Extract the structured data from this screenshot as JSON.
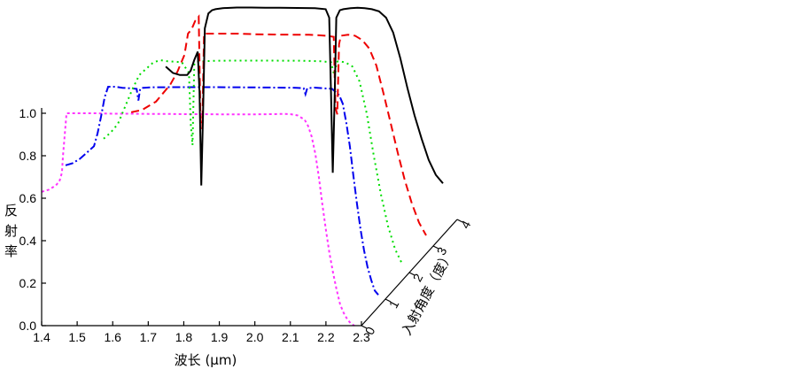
{
  "chart_data": {
    "type": "line",
    "subtype": "3d-waterfall",
    "xlabel": "波长 (μm)",
    "ylabel": "反射率",
    "zlabel": "入射角度（度）",
    "xlim": [
      1.4,
      2.3
    ],
    "ylim": [
      0.0,
      1.0
    ],
    "x_ticks": [
      "1.4",
      "1.5",
      "1.6",
      "1.7",
      "1.8",
      "1.9",
      "2.0",
      "2.1",
      "2.2",
      "2.3"
    ],
    "y_ticks": [
      "0.0",
      "0.2",
      "0.4",
      "0.6",
      "0.8",
      "1.0"
    ],
    "z_ticks": [
      "0",
      "1",
      "2",
      "3",
      "4"
    ],
    "series": [
      {
        "z": 0,
        "color": "#ff33ff",
        "dash": "3,3",
        "x": [
          1.4,
          1.42,
          1.44,
          1.45,
          1.457,
          1.46,
          1.465,
          1.47,
          1.55,
          1.6,
          1.65,
          1.7,
          1.75,
          1.8,
          1.85,
          1.9,
          1.95,
          2.0,
          2.05,
          2.08,
          2.1,
          2.12,
          2.14,
          2.15,
          2.16,
          2.17,
          2.18,
          2.19,
          2.2,
          2.21,
          2.22,
          2.23,
          2.24,
          2.25,
          2.26,
          2.27,
          2.28
        ],
        "y": [
          0.63,
          0.64,
          0.66,
          0.68,
          0.72,
          0.8,
          0.9,
          1.0,
          1.0,
          0.998,
          0.998,
          0.997,
          0.997,
          0.996,
          0.996,
          0.995,
          0.995,
          0.995,
          0.996,
          0.997,
          0.996,
          0.99,
          0.97,
          0.94,
          0.89,
          0.81,
          0.7,
          0.57,
          0.45,
          0.34,
          0.25,
          0.17,
          0.1,
          0.06,
          0.03,
          0.01,
          0.0
        ]
      },
      {
        "z": 1,
        "color": "#0000ee",
        "dash": "9,3,2,3",
        "x": [
          1.4,
          1.42,
          1.44,
          1.46,
          1.48,
          1.49,
          1.5,
          1.51,
          1.52,
          1.53,
          1.54,
          1.56,
          1.58,
          1.6,
          1.605,
          1.61,
          1.615,
          1.62,
          1.64,
          1.7,
          1.8,
          1.9,
          2.0,
          2.05,
          2.07,
          2.075,
          2.08,
          2.1,
          2.15,
          2.17,
          2.18,
          2.19,
          2.2,
          2.21,
          2.22,
          2.23,
          2.24,
          2.25,
          2.26,
          2.27,
          2.28
        ],
        "y": [
          0.63,
          0.64,
          0.66,
          0.69,
          0.72,
          0.78,
          0.86,
          0.95,
          1.0,
          1.0,
          1.0,
          0.995,
          0.993,
          0.99,
          0.935,
          0.99,
          0.995,
          0.995,
          0.997,
          0.998,
          0.998,
          0.997,
          0.996,
          0.995,
          0.993,
          0.965,
          0.993,
          0.996,
          0.99,
          0.96,
          0.92,
          0.83,
          0.72,
          0.58,
          0.45,
          0.33,
          0.23,
          0.15,
          0.09,
          0.04,
          0.02
        ]
      },
      {
        "z": 2,
        "color": "#00dd00",
        "dash": "2,4",
        "x": [
          1.44,
          1.46,
          1.48,
          1.5,
          1.52,
          1.54,
          1.56,
          1.58,
          1.6,
          1.62,
          1.64,
          1.66,
          1.68,
          1.685,
          1.69,
          1.695,
          1.7,
          1.75,
          1.8,
          1.9,
          2.0,
          2.05,
          2.08,
          2.09,
          2.095,
          2.1,
          2.12,
          2.14,
          2.16,
          2.18,
          2.2,
          2.22,
          2.24,
          2.26,
          2.28
        ],
        "y": [
          0.63,
          0.66,
          0.7,
          0.78,
          0.86,
          0.93,
          0.96,
          0.99,
          1.0,
          0.995,
          0.993,
          0.99,
          0.94,
          0.7,
          0.6,
          0.98,
          0.993,
          0.997,
          0.998,
          0.998,
          0.997,
          0.995,
          0.99,
          0.92,
          0.99,
          0.995,
          0.99,
          0.97,
          0.9,
          0.75,
          0.55,
          0.37,
          0.22,
          0.11,
          0.04
        ]
      },
      {
        "z": 3,
        "color": "#ee0000",
        "dash": "9,5",
        "x": [
          1.45,
          1.48,
          1.5,
          1.52,
          1.54,
          1.56,
          1.58,
          1.6,
          1.61,
          1.62,
          1.63,
          1.64,
          1.645,
          1.65,
          1.655,
          1.66,
          1.7,
          1.75,
          1.8,
          1.85,
          1.9,
          1.95,
          2.0,
          2.02,
          2.025,
          2.03,
          2.035,
          2.04,
          2.06,
          2.08,
          2.1,
          2.12,
          2.14,
          2.16,
          2.18,
          2.2,
          2.22,
          2.24,
          2.26,
          2.28
        ],
        "y": [
          0.63,
          0.64,
          0.66,
          0.68,
          0.72,
          0.76,
          0.82,
          0.9,
          1.0,
          1.02,
          1.06,
          1.08,
          0.6,
          0.55,
          1.0,
          1.0,
          1.0,
          1.0,
          0.997,
          0.996,
          0.995,
          0.995,
          0.99,
          0.985,
          0.65,
          0.62,
          0.95,
          0.99,
          0.995,
          0.99,
          0.97,
          0.93,
          0.85,
          0.72,
          0.58,
          0.44,
          0.31,
          0.2,
          0.11,
          0.05
        ]
      },
      {
        "z": 4,
        "color": "#000000",
        "dash": "",
        "x": [
          1.48,
          1.5,
          1.52,
          1.54,
          1.55,
          1.56,
          1.57,
          1.575,
          1.58,
          1.585,
          1.59,
          1.6,
          1.61,
          1.62,
          1.64,
          1.68,
          1.72,
          1.76,
          1.8,
          1.85,
          1.9,
          1.93,
          1.94,
          1.945,
          1.95,
          1.955,
          1.96,
          1.97,
          1.98,
          2.0,
          2.02,
          2.04,
          2.06,
          2.08,
          2.1,
          2.12,
          2.14,
          2.16,
          2.18,
          2.2,
          2.22,
          2.24,
          2.25,
          2.26
        ],
        "y": [
          0.72,
          0.69,
          0.68,
          0.68,
          0.7,
          0.75,
          0.79,
          0.6,
          0.16,
          0.5,
          0.9,
          0.97,
          0.985,
          0.99,
          0.995,
          0.998,
          0.998,
          0.997,
          0.997,
          0.996,
          0.995,
          0.99,
          0.95,
          0.6,
          0.22,
          0.55,
          0.95,
          0.985,
          0.99,
          0.995,
          0.997,
          0.995,
          0.99,
          0.98,
          0.95,
          0.88,
          0.76,
          0.62,
          0.49,
          0.38,
          0.28,
          0.21,
          0.19,
          0.17
        ]
      }
    ]
  }
}
